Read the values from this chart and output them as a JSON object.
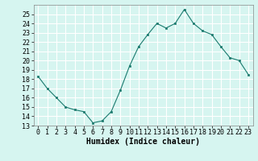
{
  "x": [
    0,
    1,
    2,
    3,
    4,
    5,
    6,
    7,
    8,
    9,
    10,
    11,
    12,
    13,
    14,
    15,
    16,
    17,
    18,
    19,
    20,
    21,
    22,
    23
  ],
  "y": [
    18.3,
    17.0,
    16.0,
    15.0,
    14.7,
    14.5,
    13.3,
    13.5,
    14.5,
    16.8,
    19.4,
    21.5,
    22.8,
    24.0,
    23.5,
    24.0,
    25.5,
    24.0,
    23.2,
    22.8,
    21.5,
    20.3,
    20.0,
    18.5
  ],
  "xlabel": "Humidex (Indice chaleur)",
  "ylim": [
    13,
    26
  ],
  "xlim": [
    -0.5,
    23.5
  ],
  "yticks": [
    13,
    14,
    15,
    16,
    17,
    18,
    19,
    20,
    21,
    22,
    23,
    24,
    25
  ],
  "xticks": [
    0,
    1,
    2,
    3,
    4,
    5,
    6,
    7,
    8,
    9,
    10,
    11,
    12,
    13,
    14,
    15,
    16,
    17,
    18,
    19,
    20,
    21,
    22,
    23
  ],
  "line_color": "#1a7a6e",
  "marker_color": "#1a7a6e",
  "bg_color": "#d6f5f0",
  "grid_color": "#ffffff",
  "xlabel_fontsize": 7,
  "tick_fontsize": 6
}
